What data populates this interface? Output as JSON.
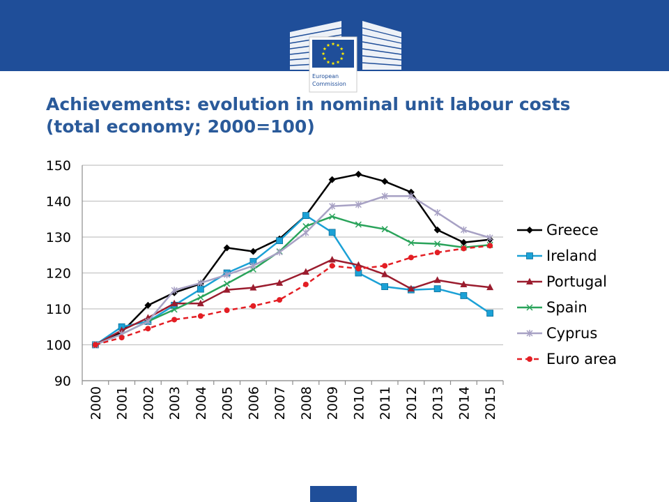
{
  "slide": {
    "title_line1": "Achievements: evolution in nominal unit labour costs",
    "title_line2": "(total economy; 2000=100)",
    "logo_text_line1": "European",
    "logo_text_line2": "Commission",
    "brand_color": "#1f4e99",
    "title_color": "#2a5a9a"
  },
  "chart_data": {
    "type": "line",
    "title": "",
    "xlabel": "",
    "ylabel": "",
    "x": [
      "2000",
      "2001",
      "2002",
      "2003",
      "2004",
      "2005",
      "2006",
      "2007",
      "2008",
      "2009",
      "2010",
      "2011",
      "2012",
      "2013",
      "2014",
      "2015"
    ],
    "ylim": [
      90,
      150
    ],
    "yticks": [
      90,
      100,
      110,
      120,
      130,
      140,
      150
    ],
    "grid": true,
    "legend_position": "right",
    "series": [
      {
        "name": "Greece",
        "color": "#000000",
        "marker": "diamond",
        "dashed": false,
        "values": [
          100,
          103.5,
          111,
          114.5,
          117,
          127,
          126,
          129.5,
          136,
          146,
          147.5,
          145.5,
          142.5,
          132,
          128.5,
          129.3
        ]
      },
      {
        "name": "Ireland",
        "color": "#1ba1d6",
        "marker": "square",
        "dashed": false,
        "values": [
          100,
          105,
          106.5,
          111,
          115.5,
          120,
          123.2,
          129,
          136,
          131.3,
          120,
          116.2,
          115.3,
          115.6,
          113.7,
          108.8
        ]
      },
      {
        "name": "Portugal",
        "color": "#9b1c2e",
        "marker": "triangle",
        "dashed": false,
        "values": [
          100,
          104,
          107.5,
          111.5,
          111.5,
          115.3,
          115.9,
          117.2,
          120.3,
          123.7,
          122.2,
          119.6,
          115.6,
          118,
          116.8,
          116
        ]
      },
      {
        "name": "Spain",
        "color": "#29a35a",
        "marker": "x",
        "dashed": false,
        "values": [
          100,
          103,
          106.5,
          109.8,
          113.2,
          117,
          121,
          126,
          133,
          135.7,
          133.5,
          132.2,
          128.4,
          128.1,
          127.1,
          127.8
        ]
      },
      {
        "name": "Cyprus",
        "color": "#a7a1c4",
        "marker": "star",
        "dashed": false,
        "values": [
          100,
          103,
          106.5,
          115.2,
          117.2,
          119.5,
          122,
          125.8,
          131.2,
          138.6,
          139,
          141.4,
          141.4,
          136.8,
          132,
          129.8
        ]
      },
      {
        "name": "Euro area",
        "color": "#e31e24",
        "marker": "circle",
        "dashed": true,
        "values": [
          100,
          102,
          104.5,
          107,
          108,
          109.6,
          110.8,
          112.5,
          116.8,
          122,
          121.2,
          122,
          124.3,
          125.7,
          126.8,
          127.6
        ]
      }
    ]
  }
}
